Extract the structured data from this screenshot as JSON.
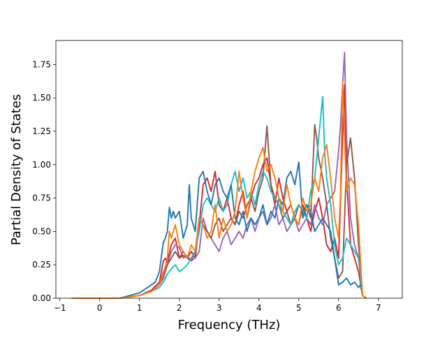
{
  "chart_data": {
    "type": "line",
    "xlabel": "Frequency (THz)",
    "ylabel": "Partial Density of States",
    "xlim": [
      -1.1,
      7.6
    ],
    "ylim": [
      0,
      1.93
    ],
    "x_ticks": [
      "−1",
      "0",
      "1",
      "2",
      "3",
      "4",
      "5",
      "6",
      "7"
    ],
    "x_tick_values": [
      -1,
      0,
      1,
      2,
      3,
      4,
      5,
      6,
      7
    ],
    "y_ticks": [
      "0.00",
      "0.25",
      "0.50",
      "0.75",
      "1.00",
      "1.25",
      "1.50",
      "1.75"
    ],
    "y_tick_values": [
      0,
      0.25,
      0.5,
      0.75,
      1.0,
      1.25,
      1.5,
      1.75
    ],
    "grid": false,
    "series": [
      {
        "color": "#d62728",
        "x": [
          -0.7,
          0.5,
          1.0,
          1.3,
          1.5,
          1.6,
          1.65,
          1.7,
          1.8,
          1.9,
          2.0,
          2.1,
          2.2,
          2.3,
          2.4,
          2.5,
          2.6,
          2.7,
          2.8,
          2.9,
          3.0,
          3.1,
          3.2,
          3.3,
          3.4,
          3.5,
          3.6,
          3.7,
          3.8,
          3.9,
          4.0,
          4.1,
          4.2,
          4.3,
          4.4,
          4.5,
          4.6,
          4.7,
          4.8,
          4.9,
          5.0,
          5.1,
          5.2,
          5.3,
          5.4,
          5.5,
          5.6,
          5.7,
          5.8,
          5.9,
          6.0,
          6.1,
          6.15,
          6.2,
          6.3,
          6.4,
          6.5,
          6.6,
          6.7
        ],
        "y": [
          0,
          0,
          0.02,
          0.06,
          0.12,
          0.28,
          0.3,
          0.27,
          0.4,
          0.45,
          0.3,
          0.35,
          0.3,
          0.35,
          0.3,
          0.55,
          0.85,
          0.9,
          0.8,
          0.95,
          0.7,
          0.65,
          0.75,
          0.6,
          0.55,
          0.7,
          0.8,
          0.6,
          0.75,
          0.85,
          0.9,
          1.0,
          1.05,
          0.85,
          0.7,
          0.9,
          0.75,
          0.65,
          0.7,
          0.6,
          0.55,
          0.7,
          0.6,
          0.5,
          0.65,
          0.75,
          0.6,
          0.4,
          0.35,
          0.45,
          0.3,
          1.2,
          1.6,
          0.9,
          0.4,
          0.3,
          0.2,
          0.02,
          0
        ]
      },
      {
        "color": "#9467bd",
        "x": [
          -0.7,
          0.5,
          1.0,
          1.3,
          1.5,
          1.6,
          1.7,
          1.8,
          1.9,
          2.0,
          2.1,
          2.2,
          2.3,
          2.4,
          2.5,
          2.6,
          2.7,
          2.8,
          2.9,
          3.0,
          3.1,
          3.2,
          3.3,
          3.4,
          3.5,
          3.6,
          3.7,
          3.8,
          3.9,
          4.0,
          4.1,
          4.2,
          4.3,
          4.4,
          4.5,
          4.6,
          4.7,
          4.8,
          4.9,
          5.0,
          5.1,
          5.2,
          5.3,
          5.4,
          5.5,
          5.6,
          5.7,
          5.8,
          5.9,
          6.0,
          6.05,
          6.1,
          6.15,
          6.2,
          6.3,
          6.4,
          6.5,
          6.6,
          6.7
        ],
        "y": [
          0,
          0,
          0.02,
          0.05,
          0.1,
          0.2,
          0.25,
          0.35,
          0.4,
          0.38,
          0.3,
          0.32,
          0.28,
          0.3,
          0.35,
          0.6,
          0.5,
          0.45,
          0.4,
          0.35,
          0.45,
          0.5,
          0.4,
          0.45,
          0.5,
          0.45,
          0.55,
          0.6,
          0.5,
          0.6,
          0.65,
          0.55,
          0.6,
          0.7,
          0.55,
          0.6,
          0.5,
          0.55,
          0.6,
          0.5,
          0.55,
          0.6,
          0.55,
          0.7,
          0.6,
          0.55,
          0.7,
          0.75,
          0.8,
          1.1,
          1.3,
          1.6,
          1.84,
          1.2,
          0.6,
          0.4,
          0.3,
          0.02,
          0
        ]
      },
      {
        "color": "#8c564b",
        "x": [
          -0.7,
          0.5,
          1.0,
          1.3,
          1.5,
          1.6,
          1.7,
          1.8,
          1.9,
          2.0,
          2.1,
          2.2,
          2.3,
          2.4,
          2.5,
          2.6,
          2.7,
          2.8,
          2.9,
          3.0,
          3.1,
          3.2,
          3.3,
          3.4,
          3.5,
          3.6,
          3.7,
          3.8,
          3.9,
          4.0,
          4.1,
          4.2,
          4.3,
          4.4,
          4.5,
          4.6,
          4.7,
          4.8,
          4.9,
          5.0,
          5.1,
          5.2,
          5.3,
          5.4,
          5.45,
          5.5,
          5.6,
          5.7,
          5.8,
          5.9,
          6.0,
          6.1,
          6.2,
          6.3,
          6.4,
          6.5,
          6.6,
          6.7
        ],
        "y": [
          0,
          0,
          0.02,
          0.05,
          0.1,
          0.15,
          0.25,
          0.3,
          0.35,
          0.3,
          0.32,
          0.3,
          0.28,
          0.35,
          0.6,
          0.55,
          0.5,
          0.45,
          0.55,
          0.6,
          0.5,
          0.55,
          0.6,
          0.55,
          0.65,
          0.6,
          0.7,
          0.75,
          0.65,
          0.8,
          0.9,
          1.29,
          0.85,
          0.75,
          0.7,
          0.6,
          0.65,
          0.55,
          0.6,
          0.7,
          0.65,
          0.7,
          0.6,
          1.3,
          1.2,
          1.05,
          0.9,
          0.7,
          0.45,
          0.3,
          0.15,
          0.2,
          1.0,
          1.2,
          0.9,
          0.4,
          0.02,
          0
        ]
      },
      {
        "color": "#17becf",
        "x": [
          -0.7,
          0.5,
          1.0,
          1.3,
          1.5,
          1.6,
          1.7,
          1.8,
          1.9,
          2.0,
          2.1,
          2.2,
          2.3,
          2.4,
          2.5,
          2.6,
          2.7,
          2.8,
          2.9,
          3.0,
          3.1,
          3.2,
          3.3,
          3.4,
          3.5,
          3.6,
          3.7,
          3.8,
          3.9,
          4.0,
          4.1,
          4.2,
          4.3,
          4.4,
          4.5,
          4.6,
          4.7,
          4.8,
          4.9,
          5.0,
          5.1,
          5.2,
          5.3,
          5.4,
          5.5,
          5.6,
          5.65,
          5.7,
          5.8,
          5.9,
          6.0,
          6.1,
          6.2,
          6.3,
          6.4,
          6.5,
          6.6,
          6.7
        ],
        "y": [
          0,
          0,
          0.02,
          0.05,
          0.08,
          0.12,
          0.18,
          0.22,
          0.25,
          0.2,
          0.22,
          0.25,
          0.3,
          0.35,
          0.5,
          0.7,
          0.75,
          0.7,
          0.65,
          0.75,
          0.65,
          0.7,
          0.85,
          0.95,
          0.8,
          0.9,
          0.75,
          0.8,
          0.7,
          0.85,
          0.95,
          0.9,
          0.8,
          0.75,
          0.7,
          0.65,
          0.6,
          0.55,
          0.65,
          0.7,
          0.65,
          0.6,
          0.8,
          0.9,
          1.2,
          1.51,
          1.1,
          0.9,
          0.7,
          0.4,
          0.25,
          0.3,
          0.45,
          0.4,
          0.35,
          0.3,
          0.02,
          0
        ]
      },
      {
        "color": "#1f77b4",
        "x": [
          -0.7,
          0.5,
          1.0,
          1.2,
          1.4,
          1.5,
          1.6,
          1.65,
          1.7,
          1.75,
          1.8,
          1.85,
          1.9,
          2.0,
          2.1,
          2.2,
          2.25,
          2.3,
          2.4,
          2.5,
          2.6,
          2.7,
          2.8,
          2.9,
          3.0,
          3.1,
          3.2,
          3.3,
          3.4,
          3.5,
          3.6,
          3.7,
          3.8,
          3.9,
          4.0,
          4.1,
          4.2,
          4.3,
          4.4,
          4.5,
          4.6,
          4.7,
          4.8,
          4.9,
          5.0,
          5.1,
          5.2,
          5.3,
          5.4,
          5.5,
          5.6,
          5.7,
          5.8,
          5.9,
          6.0,
          6.1,
          6.2,
          6.3,
          6.4,
          6.5,
          6.55,
          6.6,
          6.7
        ],
        "y": [
          0,
          0,
          0.04,
          0.08,
          0.12,
          0.2,
          0.42,
          0.45,
          0.5,
          0.68,
          0.6,
          0.65,
          0.6,
          0.65,
          0.45,
          0.55,
          0.85,
          0.6,
          0.5,
          0.9,
          0.95,
          0.8,
          0.7,
          0.85,
          0.9,
          0.8,
          0.75,
          0.85,
          0.6,
          0.55,
          0.65,
          0.5,
          0.6,
          0.55,
          0.6,
          0.7,
          0.55,
          0.65,
          0.6,
          0.75,
          0.7,
          0.9,
          0.95,
          0.85,
          1.02,
          0.6,
          0.7,
          0.65,
          0.5,
          0.55,
          0.6,
          0.55,
          0.5,
          0.3,
          0.1,
          0.12,
          0.15,
          0.1,
          0.12,
          0.08,
          0.1,
          0.02,
          0
        ]
      },
      {
        "color": "#ff7f0e",
        "x": [
          -0.7,
          0.5,
          1.0,
          1.3,
          1.5,
          1.6,
          1.7,
          1.75,
          1.8,
          1.9,
          2.0,
          2.1,
          2.2,
          2.3,
          2.4,
          2.5,
          2.6,
          2.7,
          2.8,
          2.9,
          3.0,
          3.1,
          3.2,
          3.3,
          3.4,
          3.5,
          3.6,
          3.7,
          3.8,
          3.9,
          4.0,
          4.1,
          4.2,
          4.3,
          4.4,
          4.5,
          4.6,
          4.7,
          4.8,
          4.9,
          5.0,
          5.1,
          5.2,
          5.3,
          5.4,
          5.5,
          5.6,
          5.7,
          5.8,
          5.9,
          6.0,
          6.05,
          6.1,
          6.15,
          6.2,
          6.3,
          6.4,
          6.5,
          6.6,
          6.7
        ],
        "y": [
          0,
          0,
          0.02,
          0.05,
          0.1,
          0.18,
          0.3,
          0.5,
          0.45,
          0.55,
          0.4,
          0.35,
          0.3,
          0.4,
          0.35,
          0.6,
          0.55,
          0.45,
          0.5,
          0.7,
          0.45,
          0.6,
          0.5,
          0.55,
          0.65,
          0.95,
          0.75,
          0.6,
          0.8,
          0.95,
          1.05,
          1.13,
          0.95,
          1.0,
          0.9,
          0.75,
          0.65,
          0.85,
          0.7,
          0.6,
          0.55,
          0.75,
          0.65,
          0.7,
          0.9,
          0.8,
          1.05,
          1.15,
          0.9,
          0.6,
          0.45,
          0.8,
          1.62,
          1.2,
          0.8,
          0.9,
          0.85,
          0.55,
          0.02,
          0
        ]
      }
    ]
  }
}
